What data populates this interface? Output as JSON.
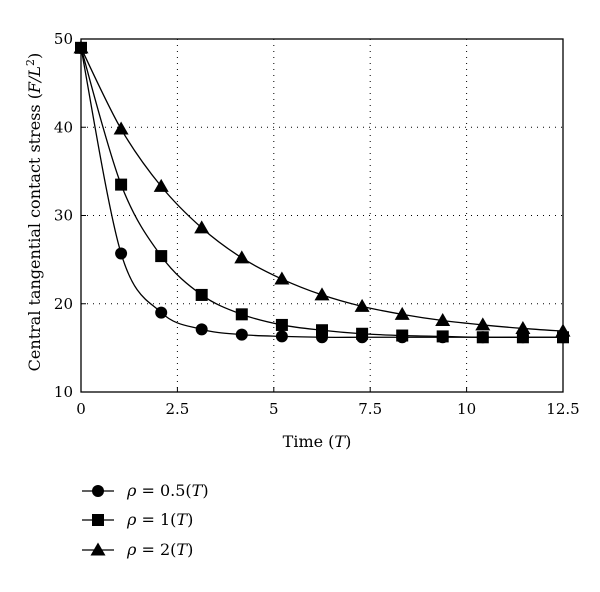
{
  "chart_data": {
    "type": "line",
    "title": "",
    "xlabel": {
      "text": "Time (",
      "var": "T",
      "close": ")"
    },
    "ylabel": {
      "text": "Central tangential contact stress (",
      "var": "F/L",
      "sup": "2",
      "close": ")"
    },
    "xlim": [
      0,
      12.5
    ],
    "ylim": [
      10,
      50
    ],
    "xticks": [
      "0",
      "2.5",
      "5",
      "7.5",
      "10",
      "12.5"
    ],
    "yticks": [
      "10",
      "20",
      "30",
      "40",
      "50"
    ],
    "grid": true,
    "legend_position": "bottom-left",
    "series": [
      {
        "name": "ρ = 0.5(T)",
        "legend": {
          "sym": "ρ",
          "text": " = 0.5(",
          "var": "T",
          "close": ")"
        },
        "marker": "circle",
        "x": [
          0,
          1.04,
          2.08,
          3.13,
          4.17,
          5.21,
          6.25,
          7.29,
          8.33,
          9.38,
          10.42,
          11.46,
          12.5
        ],
        "y": [
          49.0,
          25.7,
          19.0,
          17.1,
          16.5,
          16.3,
          16.2,
          16.2,
          16.2,
          16.2,
          16.2,
          16.2,
          16.2
        ]
      },
      {
        "name": "ρ = 1(T)",
        "legend": {
          "sym": "ρ",
          "text": " = 1(",
          "var": "T",
          "close": ")"
        },
        "marker": "square",
        "x": [
          0,
          1.04,
          2.08,
          3.13,
          4.17,
          5.21,
          6.25,
          7.29,
          8.33,
          9.38,
          10.42,
          11.46,
          12.5
        ],
        "y": [
          49.0,
          33.5,
          25.4,
          21.0,
          18.8,
          17.6,
          17.0,
          16.6,
          16.4,
          16.3,
          16.2,
          16.2,
          16.2
        ]
      },
      {
        "name": "ρ = 2(T)",
        "legend": {
          "sym": "ρ",
          "text": " = 2(",
          "var": "T",
          "close": ")"
        },
        "marker": "triangle",
        "x": [
          0,
          1.04,
          2.08,
          3.13,
          4.17,
          5.21,
          6.25,
          7.29,
          8.33,
          9.38,
          10.42,
          11.46,
          12.5
        ],
        "y": [
          49.0,
          39.8,
          33.3,
          28.6,
          25.2,
          22.8,
          21.0,
          19.7,
          18.8,
          18.1,
          17.6,
          17.2,
          16.9
        ]
      }
    ]
  }
}
